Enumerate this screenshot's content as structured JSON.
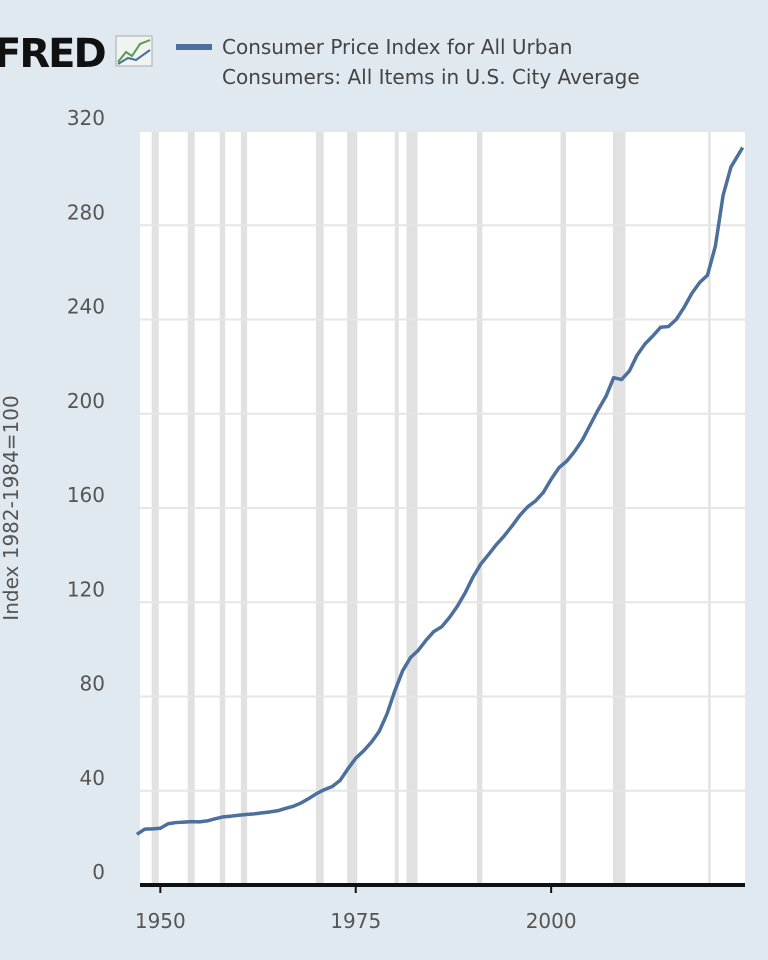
{
  "chart_data": {
    "type": "line",
    "logo": "FRED",
    "ylabel": "Index 1982-1984=100",
    "series": [
      {
        "name": "Consumer Price Index for All Urban Consumers: All Items in U.S. City Average",
        "color": "#4c6f9c",
        "x": [
          1947,
          1948,
          1949,
          1950,
          1951,
          1952,
          1953,
          1954,
          1955,
          1956,
          1957,
          1958,
          1959,
          1960,
          1961,
          1962,
          1963,
          1964,
          1965,
          1966,
          1967,
          1968,
          1969,
          1970,
          1971,
          1972,
          1973,
          1974,
          1975,
          1976,
          1977,
          1978,
          1979,
          1980,
          1981,
          1982,
          1983,
          1984,
          1985,
          1986,
          1987,
          1988,
          1989,
          1990,
          1991,
          1992,
          1993,
          1994,
          1995,
          1996,
          1997,
          1998,
          1999,
          2000,
          2001,
          2002,
          2003,
          2004,
          2005,
          2006,
          2007,
          2008,
          2009,
          2010,
          2011,
          2012,
          2013,
          2014,
          2015,
          2016,
          2017,
          2018,
          2019,
          2020,
          2021,
          2022,
          2023,
          2024.5
        ],
        "values": [
          21.5,
          23.7,
          23.8,
          24.1,
          26.0,
          26.5,
          26.7,
          26.9,
          26.8,
          27.2,
          28.1,
          28.9,
          29.2,
          29.6,
          29.9,
          30.2,
          30.6,
          31.0,
          31.5,
          32.5,
          33.4,
          34.8,
          36.7,
          38.8,
          40.5,
          41.8,
          44.4,
          49.3,
          53.8,
          56.9,
          60.6,
          65.2,
          72.6,
          82.4,
          90.9,
          96.5,
          99.6,
          103.9,
          107.6,
          109.6,
          113.6,
          118.3,
          124.0,
          130.7,
          136.2,
          140.3,
          144.5,
          148.2,
          152.4,
          156.9,
          160.5,
          163.0,
          166.6,
          172.2,
          177.1,
          179.9,
          184.0,
          188.9,
          195.3,
          201.6,
          207.3,
          215.3,
          214.5,
          218.1,
          224.9,
          229.6,
          233.0,
          236.7,
          237.0,
          240.0,
          245.1,
          251.1,
          255.7,
          258.8,
          271.0,
          292.7,
          304.7,
          313.0
        ]
      }
    ],
    "recessions": [
      [
        1948.9,
        1949.8
      ],
      [
        1953.5,
        1954.4
      ],
      [
        1957.6,
        1958.3
      ],
      [
        1960.3,
        1961.1
      ],
      [
        1969.9,
        1970.9
      ],
      [
        1973.9,
        1975.2
      ],
      [
        1980.0,
        1980.5
      ],
      [
        1981.5,
        1982.9
      ],
      [
        1990.5,
        1991.2
      ],
      [
        2001.2,
        2001.9
      ],
      [
        2007.9,
        2009.5
      ],
      [
        2020.1,
        2020.4
      ]
    ],
    "xlim": [
      1947.4,
      2024.8
    ],
    "xticks": [
      1950,
      1975,
      2000
    ],
    "ylim": [
      0,
      320
    ],
    "yticks": [
      0,
      40,
      80,
      120,
      160,
      200,
      240,
      280,
      320
    ],
    "grid": true
  }
}
